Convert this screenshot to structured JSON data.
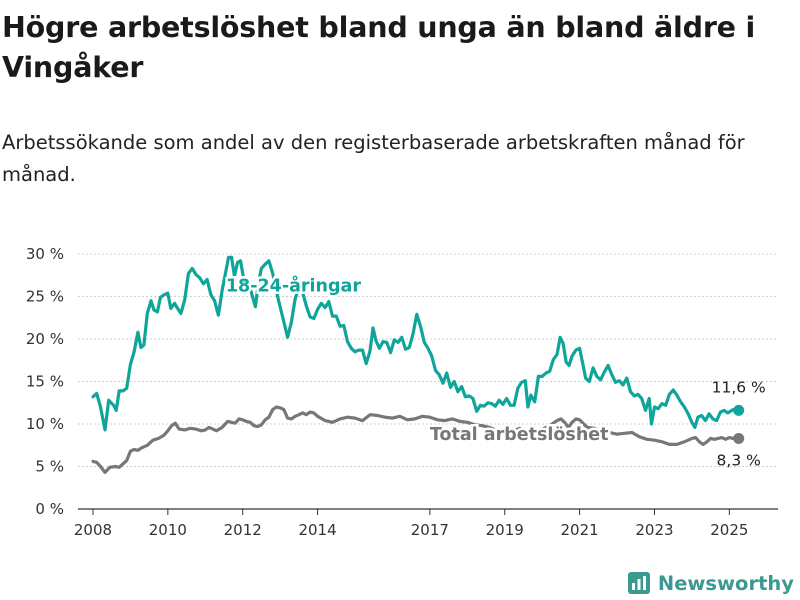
{
  "title": "Högre arbetslöshet bland unga än bland äldre i Vingåker",
  "subtitle": "Arbetssökande som andel av den registerbaserade arbetskraften månad för månad.",
  "brand": {
    "name": "Newsworthy",
    "icon": "bar-chart-logo-icon",
    "color": "#3b9a90"
  },
  "chart_data": {
    "type": "line",
    "x_ticks": [
      "2008",
      "2010",
      "2012",
      "2014",
      "2017",
      "2019",
      "2021",
      "2023",
      "2025"
    ],
    "x_tick_values": [
      2008,
      2010,
      2012,
      2014,
      2017,
      2019,
      2021,
      2023,
      2025
    ],
    "y_ticks": [
      "0 %",
      "5 %",
      "10 %",
      "15 %",
      "20 %",
      "25 %",
      "30 %"
    ],
    "y_tick_values": [
      0,
      5,
      10,
      15,
      20,
      25,
      30
    ],
    "ylim": [
      0,
      30
    ],
    "xlim": [
      2007.6,
      2026.3
    ],
    "grid": "horizontal",
    "series": [
      {
        "name": "18-24-åringar",
        "color": "#0fa59a",
        "end_label": "11,6 %",
        "points": [
          [
            2008.0,
            13.2
          ],
          [
            2008.1,
            13.6
          ],
          [
            2008.2,
            12.0
          ],
          [
            2008.32,
            9.3
          ],
          [
            2008.42,
            12.8
          ],
          [
            2008.55,
            12.2
          ],
          [
            2008.62,
            11.6
          ],
          [
            2008.7,
            13.9
          ],
          [
            2008.8,
            13.9
          ],
          [
            2008.9,
            14.2
          ],
          [
            2009.0,
            17.0
          ],
          [
            2009.1,
            18.5
          ],
          [
            2009.2,
            20.8
          ],
          [
            2009.28,
            19.0
          ],
          [
            2009.36,
            19.3
          ],
          [
            2009.45,
            23.0
          ],
          [
            2009.55,
            24.5
          ],
          [
            2009.63,
            23.4
          ],
          [
            2009.72,
            23.2
          ],
          [
            2009.8,
            24.9
          ],
          [
            2009.9,
            25.2
          ],
          [
            2010.0,
            25.4
          ],
          [
            2010.08,
            23.6
          ],
          [
            2010.18,
            24.2
          ],
          [
            2010.26,
            23.6
          ],
          [
            2010.35,
            23.0
          ],
          [
            2010.45,
            24.6
          ],
          [
            2010.55,
            27.7
          ],
          [
            2010.65,
            28.3
          ],
          [
            2010.75,
            27.6
          ],
          [
            2010.85,
            27.2
          ],
          [
            2010.95,
            26.5
          ],
          [
            2011.05,
            27.0
          ],
          [
            2011.15,
            25.2
          ],
          [
            2011.25,
            24.5
          ],
          [
            2011.35,
            22.8
          ],
          [
            2011.45,
            25.7
          ],
          [
            2011.55,
            28.0
          ],
          [
            2011.62,
            29.6
          ],
          [
            2011.7,
            29.6
          ],
          [
            2011.78,
            27.4
          ],
          [
            2011.86,
            29.0
          ],
          [
            2011.94,
            29.2
          ],
          [
            2012.02,
            27.2
          ],
          [
            2012.1,
            26.2
          ],
          [
            2012.18,
            26.4
          ],
          [
            2012.26,
            25.0
          ],
          [
            2012.34,
            23.8
          ],
          [
            2012.42,
            26.6
          ],
          [
            2012.5,
            28.3
          ],
          [
            2012.6,
            28.8
          ],
          [
            2012.7,
            29.2
          ],
          [
            2012.8,
            27.7
          ],
          [
            2012.9,
            25.6
          ],
          [
            2013.0,
            23.8
          ],
          [
            2013.1,
            22.0
          ],
          [
            2013.2,
            20.2
          ],
          [
            2013.3,
            22.0
          ],
          [
            2013.4,
            24.7
          ],
          [
            2013.5,
            26.0
          ],
          [
            2013.6,
            25.5
          ],
          [
            2013.7,
            23.9
          ],
          [
            2013.8,
            22.6
          ],
          [
            2013.9,
            22.4
          ],
          [
            2014.0,
            23.5
          ],
          [
            2014.1,
            24.2
          ],
          [
            2014.2,
            23.7
          ],
          [
            2014.3,
            24.4
          ],
          [
            2014.4,
            22.7
          ],
          [
            2014.5,
            22.7
          ],
          [
            2014.6,
            21.5
          ],
          [
            2014.7,
            21.6
          ],
          [
            2014.8,
            19.7
          ],
          [
            2014.9,
            18.9
          ],
          [
            2015.0,
            18.5
          ],
          [
            2015.1,
            18.7
          ],
          [
            2015.2,
            18.7
          ],
          [
            2015.3,
            17.1
          ],
          [
            2015.4,
            18.6
          ],
          [
            2015.48,
            21.3
          ],
          [
            2015.56,
            19.8
          ],
          [
            2015.65,
            18.9
          ],
          [
            2015.75,
            19.7
          ],
          [
            2015.85,
            19.6
          ],
          [
            2015.95,
            18.4
          ],
          [
            2016.05,
            19.9
          ],
          [
            2016.15,
            19.6
          ],
          [
            2016.25,
            20.2
          ],
          [
            2016.35,
            18.8
          ],
          [
            2016.45,
            19.0
          ],
          [
            2016.55,
            20.6
          ],
          [
            2016.65,
            22.9
          ],
          [
            2016.75,
            21.5
          ],
          [
            2016.85,
            19.6
          ],
          [
            2016.95,
            18.9
          ],
          [
            2017.05,
            18.0
          ],
          [
            2017.15,
            16.3
          ],
          [
            2017.25,
            15.8
          ],
          [
            2017.35,
            14.8
          ],
          [
            2017.45,
            16.0
          ],
          [
            2017.55,
            14.3
          ],
          [
            2017.65,
            15.0
          ],
          [
            2017.75,
            13.8
          ],
          [
            2017.85,
            14.4
          ],
          [
            2017.95,
            13.2
          ],
          [
            2018.05,
            13.3
          ],
          [
            2018.15,
            13.0
          ],
          [
            2018.25,
            11.5
          ],
          [
            2018.35,
            12.2
          ],
          [
            2018.45,
            12.1
          ],
          [
            2018.55,
            12.5
          ],
          [
            2018.65,
            12.4
          ],
          [
            2018.75,
            12.1
          ],
          [
            2018.85,
            12.8
          ],
          [
            2018.95,
            12.3
          ],
          [
            2019.05,
            13.0
          ],
          [
            2019.15,
            12.2
          ],
          [
            2019.25,
            12.2
          ],
          [
            2019.35,
            14.2
          ],
          [
            2019.45,
            14.9
          ],
          [
            2019.55,
            15.1
          ],
          [
            2019.62,
            12.0
          ],
          [
            2019.7,
            13.4
          ],
          [
            2019.8,
            12.6
          ],
          [
            2019.9,
            15.6
          ],
          [
            2020.0,
            15.6
          ],
          [
            2020.1,
            16.0
          ],
          [
            2020.2,
            16.2
          ],
          [
            2020.3,
            17.6
          ],
          [
            2020.4,
            18.2
          ],
          [
            2020.48,
            20.2
          ],
          [
            2020.56,
            19.5
          ],
          [
            2020.64,
            17.3
          ],
          [
            2020.72,
            16.9
          ],
          [
            2020.8,
            18.0
          ],
          [
            2020.9,
            18.7
          ],
          [
            2021.0,
            18.9
          ],
          [
            2021.08,
            17.2
          ],
          [
            2021.16,
            15.4
          ],
          [
            2021.26,
            15.0
          ],
          [
            2021.36,
            16.6
          ],
          [
            2021.46,
            15.6
          ],
          [
            2021.56,
            15.2
          ],
          [
            2021.66,
            16.1
          ],
          [
            2021.76,
            16.9
          ],
          [
            2021.86,
            15.8
          ],
          [
            2021.96,
            14.9
          ],
          [
            2022.06,
            15.1
          ],
          [
            2022.16,
            14.6
          ],
          [
            2022.26,
            15.4
          ],
          [
            2022.36,
            13.8
          ],
          [
            2022.46,
            13.3
          ],
          [
            2022.56,
            13.5
          ],
          [
            2022.66,
            13.0
          ],
          [
            2022.76,
            11.6
          ],
          [
            2022.86,
            13.0
          ],
          [
            2022.92,
            10.0
          ],
          [
            2023.0,
            12.0
          ],
          [
            2023.1,
            11.8
          ],
          [
            2023.2,
            12.4
          ],
          [
            2023.3,
            12.2
          ],
          [
            2023.4,
            13.5
          ],
          [
            2023.5,
            14.0
          ],
          [
            2023.6,
            13.4
          ],
          [
            2023.7,
            12.6
          ],
          [
            2023.8,
            12.0
          ],
          [
            2023.9,
            11.2
          ],
          [
            2024.0,
            10.2
          ],
          [
            2024.08,
            9.6
          ],
          [
            2024.16,
            10.8
          ],
          [
            2024.26,
            11.0
          ],
          [
            2024.36,
            10.4
          ],
          [
            2024.46,
            11.2
          ],
          [
            2024.56,
            10.6
          ],
          [
            2024.66,
            10.4
          ],
          [
            2024.76,
            11.4
          ],
          [
            2024.86,
            11.6
          ],
          [
            2024.96,
            11.3
          ],
          [
            2025.1,
            11.7
          ],
          [
            2025.25,
            11.6
          ]
        ]
      },
      {
        "name": "Total arbetslöshet",
        "color": "#777777",
        "end_label": "8,3 %",
        "points": [
          [
            2008.0,
            5.6
          ],
          [
            2008.1,
            5.5
          ],
          [
            2008.2,
            5.0
          ],
          [
            2008.32,
            4.3
          ],
          [
            2008.45,
            4.9
          ],
          [
            2008.6,
            5.0
          ],
          [
            2008.7,
            4.9
          ],
          [
            2008.8,
            5.3
          ],
          [
            2008.9,
            5.7
          ],
          [
            2009.0,
            6.8
          ],
          [
            2009.1,
            7.0
          ],
          [
            2009.2,
            6.9
          ],
          [
            2009.3,
            7.2
          ],
          [
            2009.45,
            7.5
          ],
          [
            2009.6,
            8.1
          ],
          [
            2009.75,
            8.3
          ],
          [
            2009.9,
            8.7
          ],
          [
            2010.0,
            9.2
          ],
          [
            2010.1,
            9.8
          ],
          [
            2010.2,
            10.1
          ],
          [
            2010.3,
            9.4
          ],
          [
            2010.45,
            9.3
          ],
          [
            2010.6,
            9.5
          ],
          [
            2010.75,
            9.4
          ],
          [
            2010.9,
            9.2
          ],
          [
            2011.0,
            9.3
          ],
          [
            2011.1,
            9.6
          ],
          [
            2011.2,
            9.4
          ],
          [
            2011.3,
            9.2
          ],
          [
            2011.45,
            9.6
          ],
          [
            2011.6,
            10.3
          ],
          [
            2011.7,
            10.2
          ],
          [
            2011.8,
            10.1
          ],
          [
            2011.9,
            10.6
          ],
          [
            2012.0,
            10.5
          ],
          [
            2012.1,
            10.3
          ],
          [
            2012.2,
            10.2
          ],
          [
            2012.3,
            9.8
          ],
          [
            2012.4,
            9.7
          ],
          [
            2012.5,
            9.9
          ],
          [
            2012.6,
            10.5
          ],
          [
            2012.7,
            10.8
          ],
          [
            2012.8,
            11.7
          ],
          [
            2012.9,
            12.0
          ],
          [
            2013.0,
            11.9
          ],
          [
            2013.1,
            11.7
          ],
          [
            2013.2,
            10.7
          ],
          [
            2013.3,
            10.6
          ],
          [
            2013.4,
            10.9
          ],
          [
            2013.5,
            11.1
          ],
          [
            2013.6,
            11.3
          ],
          [
            2013.7,
            11.1
          ],
          [
            2013.8,
            11.4
          ],
          [
            2013.9,
            11.3
          ],
          [
            2014.0,
            10.9
          ],
          [
            2014.2,
            10.4
          ],
          [
            2014.4,
            10.2
          ],
          [
            2014.6,
            10.6
          ],
          [
            2014.8,
            10.8
          ],
          [
            2015.0,
            10.7
          ],
          [
            2015.2,
            10.4
          ],
          [
            2015.4,
            11.1
          ],
          [
            2015.6,
            11.0
          ],
          [
            2015.8,
            10.8
          ],
          [
            2016.0,
            10.7
          ],
          [
            2016.2,
            10.9
          ],
          [
            2016.4,
            10.5
          ],
          [
            2016.6,
            10.6
          ],
          [
            2016.8,
            10.9
          ],
          [
            2017.0,
            10.8
          ],
          [
            2017.2,
            10.5
          ],
          [
            2017.4,
            10.4
          ],
          [
            2017.6,
            10.6
          ],
          [
            2017.8,
            10.3
          ],
          [
            2018.0,
            10.2
          ],
          [
            2018.2,
            9.9
          ],
          [
            2018.4,
            9.8
          ],
          [
            2018.6,
            9.6
          ],
          [
            2018.8,
            9.2
          ],
          [
            2019.0,
            9.0
          ],
          [
            2019.2,
            9.1
          ],
          [
            2019.4,
            9.5
          ],
          [
            2019.6,
            9.1
          ],
          [
            2019.8,
            9.3
          ],
          [
            2020.0,
            9.4
          ],
          [
            2020.2,
            9.8
          ],
          [
            2020.4,
            10.4
          ],
          [
            2020.5,
            10.6
          ],
          [
            2020.6,
            10.2
          ],
          [
            2020.7,
            9.6
          ],
          [
            2020.8,
            10.2
          ],
          [
            2020.9,
            10.6
          ],
          [
            2021.0,
            10.5
          ],
          [
            2021.2,
            9.6
          ],
          [
            2021.4,
            9.5
          ],
          [
            2021.6,
            9.1
          ],
          [
            2021.8,
            9.0
          ],
          [
            2022.0,
            8.8
          ],
          [
            2022.2,
            8.9
          ],
          [
            2022.4,
            9.0
          ],
          [
            2022.6,
            8.5
          ],
          [
            2022.8,
            8.2
          ],
          [
            2023.0,
            8.1
          ],
          [
            2023.2,
            7.9
          ],
          [
            2023.4,
            7.6
          ],
          [
            2023.6,
            7.6
          ],
          [
            2023.8,
            7.9
          ],
          [
            2024.0,
            8.3
          ],
          [
            2024.1,
            8.4
          ],
          [
            2024.2,
            7.9
          ],
          [
            2024.3,
            7.6
          ],
          [
            2024.4,
            7.9
          ],
          [
            2024.5,
            8.3
          ],
          [
            2024.6,
            8.2
          ],
          [
            2024.7,
            8.3
          ],
          [
            2024.8,
            8.4
          ],
          [
            2024.9,
            8.2
          ],
          [
            2025.0,
            8.4
          ],
          [
            2025.1,
            8.3
          ],
          [
            2025.25,
            8.3
          ]
        ]
      }
    ]
  }
}
